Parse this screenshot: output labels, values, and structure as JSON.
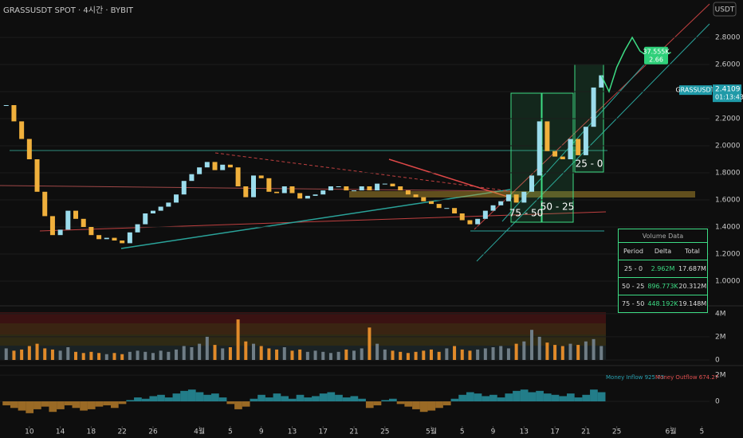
{
  "header": {
    "title": "GRASSUSDT SPOT · 4시간 · BYBIT",
    "unit": "USDT"
  },
  "chart_data": [
    {
      "type": "candlestick",
      "x": [
        -3,
        -2,
        -1,
        0,
        1,
        2,
        3,
        4,
        5,
        6,
        7,
        8,
        9,
        10,
        11,
        12,
        13,
        14,
        15,
        16,
        17,
        18,
        19,
        20,
        21,
        22,
        23,
        24,
        25,
        26,
        27,
        28,
        29,
        30,
        31,
        32,
        33,
        34,
        35,
        36,
        37,
        38,
        39,
        40,
        41,
        42,
        43,
        44,
        45,
        46,
        47,
        48,
        49,
        50,
        51,
        52,
        53,
        54,
        55,
        56,
        57,
        58,
        59,
        60,
        61,
        62,
        63,
        64,
        65,
        66,
        67,
        68,
        69,
        70,
        71,
        72,
        73,
        74
      ],
      "values": [
        2.3,
        2.18,
        2.05,
        1.9,
        1.66,
        1.48,
        1.34,
        1.38,
        1.52,
        1.46,
        1.4,
        1.34,
        1.31,
        1.32,
        1.3,
        1.28,
        1.36,
        1.42,
        1.5,
        1.52,
        1.55,
        1.58,
        1.64,
        1.74,
        1.79,
        1.84,
        1.88,
        1.82,
        1.86,
        1.84,
        1.7,
        1.62,
        1.78,
        1.76,
        1.66,
        1.65,
        1.7,
        1.65,
        1.61,
        1.63,
        1.64,
        1.67,
        1.7,
        1.7,
        1.67,
        1.67,
        1.7,
        1.67,
        1.72,
        1.72,
        1.7,
        1.67,
        1.64,
        1.62,
        1.59,
        1.57,
        1.54,
        1.54,
        1.5,
        1.45,
        1.42,
        1.46,
        1.52,
        1.56,
        1.59,
        1.64,
        1.58,
        1.66,
        1.78,
        2.18,
        1.96,
        1.92,
        1.9,
        2.05,
        1.93,
        2.14,
        2.43,
        2.52
      ],
      "up_color": "#9bdcec",
      "down_color": "#f0b03c",
      "projection": {
        "x": [
          74,
          75,
          76,
          77,
          78,
          79,
          80,
          81,
          82,
          83
        ],
        "values": [
          2.52,
          2.4,
          2.58,
          2.7,
          2.8,
          2.7,
          2.66,
          2.62,
          2.66,
          2.69
        ],
        "color": "#3ddc84"
      },
      "xlim": [
        -3.8,
        88
      ],
      "ylim": [
        0.9,
        2.9
      ],
      "xticks": [
        {
          "value": 0,
          "label": "10"
        },
        {
          "value": 4,
          "label": "14"
        },
        {
          "value": 8,
          "label": "18"
        },
        {
          "value": 12,
          "label": "22"
        },
        {
          "value": 16,
          "label": "26"
        },
        {
          "value": 22,
          "label": "4월"
        },
        {
          "value": 26,
          "label": "5"
        },
        {
          "value": 30,
          "label": "9"
        },
        {
          "value": 34,
          "label": "13"
        },
        {
          "value": 38,
          "label": "17"
        },
        {
          "value": 42,
          "label": "21"
        },
        {
          "value": 46,
          "label": "25"
        },
        {
          "value": 52,
          "label": "5월"
        },
        {
          "value": 56,
          "label": "5"
        },
        {
          "value": 60,
          "label": "9"
        },
        {
          "value": 64,
          "label": "13"
        },
        {
          "value": 68,
          "label": "17"
        },
        {
          "value": 72,
          "label": "21"
        },
        {
          "value": 76,
          "label": "25"
        },
        {
          "value": 83,
          "label": "6월"
        },
        {
          "value": 87,
          "label": "5"
        }
      ],
      "yticks": [
        {
          "value": 1.0,
          "label": "1.0000"
        },
        {
          "value": 1.2,
          "label": "1.2000"
        },
        {
          "value": 1.4,
          "label": "1.4000"
        },
        {
          "value": 1.6,
          "label": "1.6000"
        },
        {
          "value": 1.8,
          "label": "1.8000"
        },
        {
          "value": 2.0,
          "label": "2.0000"
        },
        {
          "value": 2.2,
          "label": "2.2000"
        },
        {
          "value": 2.4,
          "label": "2.4000"
        },
        {
          "value": 2.6,
          "label": "2.6000"
        },
        {
          "value": 2.8,
          "label": "2.8000"
        }
      ],
      "annotations": [
        "75 - 50",
        "50 - 25",
        "25 - 0"
      ],
      "last_price": {
        "symbol": "GRASSUSDT",
        "price": 2.4109,
        "countdown": "01:13:43"
      },
      "high_marker": {
        "volume": "37.555K",
        "price": 2.66
      }
    },
    {
      "type": "bar",
      "x": [
        -3,
        -2,
        -1,
        0,
        1,
        2,
        3,
        4,
        5,
        6,
        7,
        8,
        9,
        10,
        11,
        12,
        13,
        14,
        15,
        16,
        17,
        18,
        19,
        20,
        21,
        22,
        23,
        24,
        25,
        26,
        27,
        28,
        29,
        30,
        31,
        32,
        33,
        34,
        35,
        36,
        37,
        38,
        39,
        40,
        41,
        42,
        43,
        44,
        45,
        46,
        47,
        48,
        49,
        50,
        51,
        52,
        53,
        54,
        55,
        56,
        57,
        58,
        59,
        60,
        61,
        62,
        63,
        64,
        65,
        66,
        67,
        68,
        69,
        70,
        71,
        72,
        73,
        74
      ],
      "values": [
        1000000,
        800000,
        900000,
        1200000,
        1400000,
        1000000,
        900000,
        800000,
        1100000,
        700000,
        600000,
        700000,
        600000,
        500000,
        600000,
        500000,
        700000,
        800000,
        700000,
        600000,
        800000,
        700000,
        900000,
        1200000,
        1100000,
        1400000,
        2000000,
        1300000,
        1000000,
        1100000,
        3500000,
        1600000,
        1400000,
        1200000,
        1000000,
        900000,
        1100000,
        800000,
        900000,
        700000,
        800000,
        700000,
        600000,
        700000,
        900000,
        800000,
        1000000,
        2800000,
        1400000,
        900000,
        800000,
        700000,
        600000,
        700000,
        800000,
        900000,
        700000,
        1000000,
        1200000,
        900000,
        800000,
        900000,
        1000000,
        1100000,
        1200000,
        1000000,
        1400000,
        1600000,
        2600000,
        2000000,
        1500000,
        1300000,
        1200000,
        1400000,
        1300000,
        1600000,
        1800000,
        1200000
      ],
      "up_color": "#6f7d86",
      "down_color": "#e08a2a",
      "xlim": [
        -3.8,
        88
      ],
      "ylim": [
        0,
        4400000
      ],
      "yticks": [
        {
          "value": 4000000,
          "label": "4M"
        },
        {
          "value": 2000000,
          "label": "2M"
        },
        0
      ]
    },
    {
      "type": "flow",
      "x": [
        -3,
        -2,
        -1,
        0,
        1,
        2,
        3,
        4,
        5,
        6,
        7,
        8,
        9,
        10,
        11,
        12,
        13,
        14,
        15,
        16,
        17,
        18,
        19,
        20,
        21,
        22,
        23,
        24,
        25,
        26,
        27,
        28,
        29,
        30,
        31,
        32,
        33,
        34,
        35,
        36,
        37,
        38,
        39,
        40,
        41,
        42,
        43,
        44,
        45,
        46,
        47,
        48,
        49,
        50,
        51,
        52,
        53,
        54,
        55,
        56,
        57,
        58,
        59,
        60,
        61,
        62,
        63,
        64,
        65,
        66,
        67,
        68,
        69,
        70,
        71,
        72,
        73,
        74
      ],
      "values": [
        -300000,
        -500000,
        -700000,
        -900000,
        -600000,
        -400000,
        -800000,
        -600000,
        -300000,
        -500000,
        -700000,
        -600000,
        -400000,
        -300000,
        -500000,
        -200000,
        100000,
        300000,
        200000,
        400000,
        500000,
        300000,
        600000,
        800000,
        900000,
        700000,
        500000,
        600000,
        300000,
        -200000,
        -600000,
        -400000,
        200000,
        500000,
        300000,
        600000,
        400000,
        200000,
        500000,
        300000,
        400000,
        600000,
        700000,
        500000,
        300000,
        400000,
        200000,
        -500000,
        -300000,
        100000,
        200000,
        -200000,
        -400000,
        -600000,
        -800000,
        -700000,
        -500000,
        -300000,
        200000,
        500000,
        700000,
        600000,
        400000,
        500000,
        300000,
        600000,
        800000,
        900000,
        700000,
        800000,
        600000,
        500000,
        400000,
        600000,
        300000,
        500000,
        900000,
        700000
      ],
      "inflow_color": "#2aa3b3",
      "outflow_color": "#c9892e",
      "xlim": [
        -3.8,
        88
      ],
      "ylim": [
        -1880000,
        2550000
      ],
      "yticks": [
        {
          "value": 2000000,
          "label": "2M"
        },
        0
      ],
      "inflow_label": "Money Inflow 925.73",
      "outflow_label": "Money Outflow 674.27"
    }
  ],
  "volume_table": {
    "title": "Volume Data",
    "columns": [
      "Period",
      "Delta",
      "Total"
    ],
    "rows": [
      [
        "25 - 0",
        "2.962M",
        "17.687M"
      ],
      [
        "50 - 25",
        "896.773K",
        "20.312M"
      ],
      [
        "75 - 50",
        "448.192K",
        "19.148M"
      ]
    ]
  }
}
